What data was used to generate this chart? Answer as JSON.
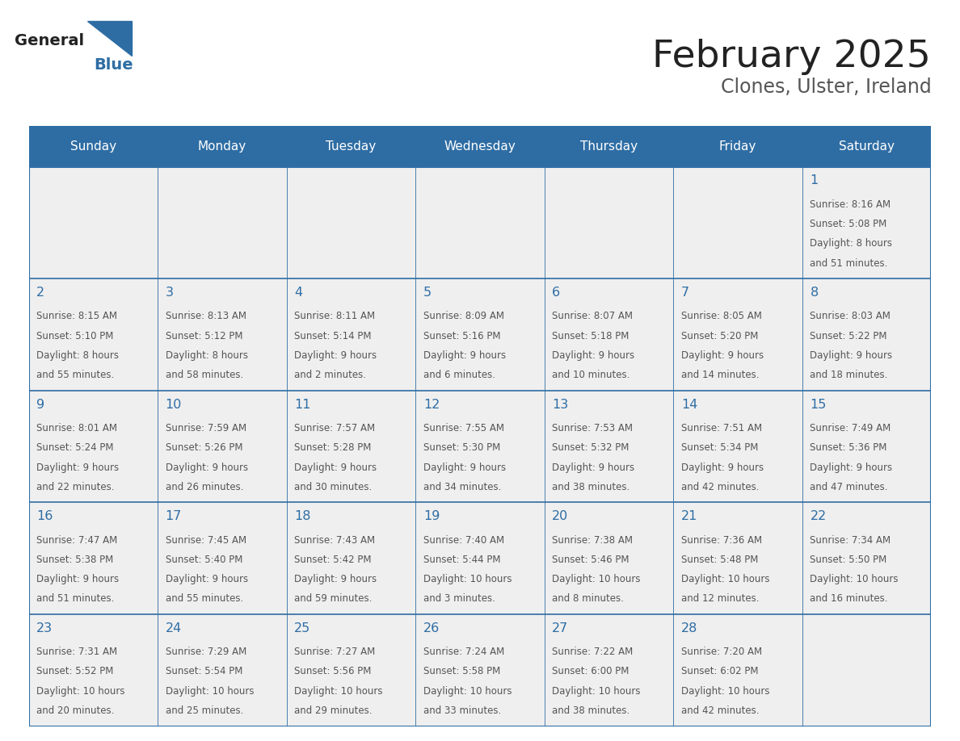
{
  "title": "February 2025",
  "subtitle": "Clones, Ulster, Ireland",
  "days_of_week": [
    "Sunday",
    "Monday",
    "Tuesday",
    "Wednesday",
    "Thursday",
    "Friday",
    "Saturday"
  ],
  "header_bg": "#2E6DA4",
  "header_text": "#FFFFFF",
  "cell_bg": "#EFEFEF",
  "border_color": "#2E6DA4",
  "day_number_color": "#2E6DA4",
  "cell_text_color": "#555555",
  "title_color": "#222222",
  "subtitle_color": "#555555",
  "logo_color_general": "#222222",
  "logo_color_blue": "#2E6DA4",
  "calendar_data": [
    [
      null,
      null,
      null,
      null,
      null,
      null,
      {
        "day": 1,
        "sunrise": "8:16 AM",
        "sunset": "5:08 PM",
        "daylight": "8 hours\nand 51 minutes."
      }
    ],
    [
      {
        "day": 2,
        "sunrise": "8:15 AM",
        "sunset": "5:10 PM",
        "daylight": "8 hours\nand 55 minutes."
      },
      {
        "day": 3,
        "sunrise": "8:13 AM",
        "sunset": "5:12 PM",
        "daylight": "8 hours\nand 58 minutes."
      },
      {
        "day": 4,
        "sunrise": "8:11 AM",
        "sunset": "5:14 PM",
        "daylight": "9 hours\nand 2 minutes."
      },
      {
        "day": 5,
        "sunrise": "8:09 AM",
        "sunset": "5:16 PM",
        "daylight": "9 hours\nand 6 minutes."
      },
      {
        "day": 6,
        "sunrise": "8:07 AM",
        "sunset": "5:18 PM",
        "daylight": "9 hours\nand 10 minutes."
      },
      {
        "day": 7,
        "sunrise": "8:05 AM",
        "sunset": "5:20 PM",
        "daylight": "9 hours\nand 14 minutes."
      },
      {
        "day": 8,
        "sunrise": "8:03 AM",
        "sunset": "5:22 PM",
        "daylight": "9 hours\nand 18 minutes."
      }
    ],
    [
      {
        "day": 9,
        "sunrise": "8:01 AM",
        "sunset": "5:24 PM",
        "daylight": "9 hours\nand 22 minutes."
      },
      {
        "day": 10,
        "sunrise": "7:59 AM",
        "sunset": "5:26 PM",
        "daylight": "9 hours\nand 26 minutes."
      },
      {
        "day": 11,
        "sunrise": "7:57 AM",
        "sunset": "5:28 PM",
        "daylight": "9 hours\nand 30 minutes."
      },
      {
        "day": 12,
        "sunrise": "7:55 AM",
        "sunset": "5:30 PM",
        "daylight": "9 hours\nand 34 minutes."
      },
      {
        "day": 13,
        "sunrise": "7:53 AM",
        "sunset": "5:32 PM",
        "daylight": "9 hours\nand 38 minutes."
      },
      {
        "day": 14,
        "sunrise": "7:51 AM",
        "sunset": "5:34 PM",
        "daylight": "9 hours\nand 42 minutes."
      },
      {
        "day": 15,
        "sunrise": "7:49 AM",
        "sunset": "5:36 PM",
        "daylight": "9 hours\nand 47 minutes."
      }
    ],
    [
      {
        "day": 16,
        "sunrise": "7:47 AM",
        "sunset": "5:38 PM",
        "daylight": "9 hours\nand 51 minutes."
      },
      {
        "day": 17,
        "sunrise": "7:45 AM",
        "sunset": "5:40 PM",
        "daylight": "9 hours\nand 55 minutes."
      },
      {
        "day": 18,
        "sunrise": "7:43 AM",
        "sunset": "5:42 PM",
        "daylight": "9 hours\nand 59 minutes."
      },
      {
        "day": 19,
        "sunrise": "7:40 AM",
        "sunset": "5:44 PM",
        "daylight": "10 hours\nand 3 minutes."
      },
      {
        "day": 20,
        "sunrise": "7:38 AM",
        "sunset": "5:46 PM",
        "daylight": "10 hours\nand 8 minutes."
      },
      {
        "day": 21,
        "sunrise": "7:36 AM",
        "sunset": "5:48 PM",
        "daylight": "10 hours\nand 12 minutes."
      },
      {
        "day": 22,
        "sunrise": "7:34 AM",
        "sunset": "5:50 PM",
        "daylight": "10 hours\nand 16 minutes."
      }
    ],
    [
      {
        "day": 23,
        "sunrise": "7:31 AM",
        "sunset": "5:52 PM",
        "daylight": "10 hours\nand 20 minutes."
      },
      {
        "day": 24,
        "sunrise": "7:29 AM",
        "sunset": "5:54 PM",
        "daylight": "10 hours\nand 25 minutes."
      },
      {
        "day": 25,
        "sunrise": "7:27 AM",
        "sunset": "5:56 PM",
        "daylight": "10 hours\nand 29 minutes."
      },
      {
        "day": 26,
        "sunrise": "7:24 AM",
        "sunset": "5:58 PM",
        "daylight": "10 hours\nand 33 minutes."
      },
      {
        "day": 27,
        "sunrise": "7:22 AM",
        "sunset": "6:00 PM",
        "daylight": "10 hours\nand 38 minutes."
      },
      {
        "day": 28,
        "sunrise": "7:20 AM",
        "sunset": "6:02 PM",
        "daylight": "10 hours\nand 42 minutes."
      },
      null
    ]
  ]
}
